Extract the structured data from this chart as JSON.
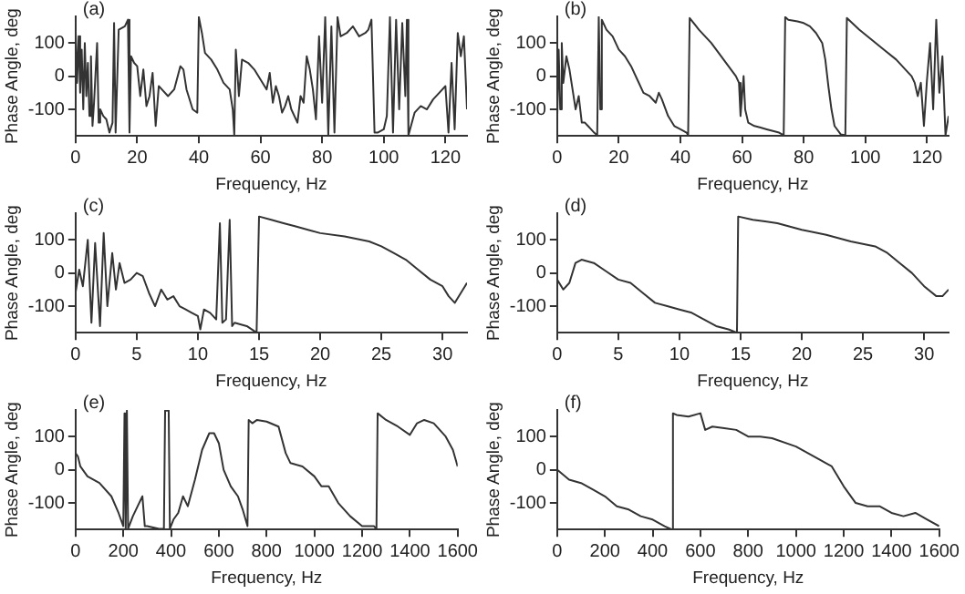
{
  "chart_data": [
    {
      "type": "line",
      "title": "(a)",
      "xlabel": "Frequency, Hz",
      "ylabel": "Phase Angle, deg",
      "xlim": [
        0,
        127
      ],
      "xticks": [
        0,
        20,
        40,
        60,
        80,
        100,
        120
      ],
      "ylim": [
        -180,
        180
      ],
      "yticks": [
        -100,
        0,
        100
      ],
      "grid": false,
      "color": "#333333",
      "x": [
        0,
        0.5,
        1,
        1.5,
        2,
        2.5,
        3,
        3.5,
        4,
        4.5,
        5,
        5.5,
        6,
        7,
        7.5,
        8,
        9,
        10,
        11,
        12,
        12.5,
        13,
        14,
        16,
        17,
        17.5,
        18,
        19,
        20,
        21,
        22,
        23,
        24,
        25,
        26,
        27,
        28,
        30,
        32,
        34,
        35,
        36,
        38,
        39.5,
        40,
        41,
        42,
        44,
        46,
        48,
        50,
        51,
        51.5,
        52,
        53,
        54,
        56,
        58,
        60,
        62,
        63,
        64,
        65,
        66,
        67,
        68,
        69,
        70,
        72,
        73,
        74,
        75,
        76,
        77,
        78,
        79,
        80,
        81,
        82,
        83,
        84,
        85,
        86,
        88,
        90,
        92,
        94,
        95,
        96,
        97,
        98,
        100,
        101,
        102,
        103,
        104,
        105,
        106,
        107,
        107.5,
        108,
        110,
        112,
        114,
        116,
        118,
        120,
        121,
        122,
        123,
        124,
        125,
        126,
        127
      ],
      "values": [
        150,
        -20,
        120,
        -50,
        80,
        -100,
        100,
        -60,
        40,
        -120,
        60,
        -150,
        -80,
        100,
        -140,
        -100,
        -120,
        -130,
        -170,
        -140,
        160,
        -170,
        140,
        150,
        170,
        -170,
        60,
        40,
        30,
        -60,
        20,
        -90,
        -60,
        10,
        -150,
        -30,
        -40,
        -60,
        -40,
        30,
        20,
        -40,
        -100,
        -110,
        178,
        130,
        70,
        50,
        20,
        -20,
        -40,
        -100,
        -178,
        80,
        -60,
        50,
        40,
        20,
        -10,
        -40,
        10,
        -80,
        -30,
        -60,
        -110,
        -90,
        -60,
        -100,
        -140,
        -60,
        -80,
        60,
        20,
        -40,
        -130,
        120,
        -80,
        178,
        -178,
        150,
        -170,
        178,
        120,
        130,
        150,
        120,
        130,
        140,
        170,
        -170,
        -170,
        -160,
        -120,
        178,
        -170,
        170,
        -100,
        160,
        -60,
        170,
        -178,
        -110,
        -90,
        -100,
        -70,
        -50,
        -30,
        -170,
        40,
        -160,
        130,
        60,
        120,
        -100
      ]
    },
    {
      "type": "line",
      "title": "(b)",
      "xlabel": "Frequency, Hz",
      "ylabel": "Phase Angle, deg",
      "xlim": [
        0,
        127
      ],
      "xticks": [
        0,
        20,
        40,
        60,
        80,
        100,
        120
      ],
      "ylim": [
        -180,
        180
      ],
      "yticks": [
        -100,
        0,
        100
      ],
      "grid": false,
      "color": "#333333",
      "x": [
        0,
        0.5,
        1,
        1.5,
        2,
        3,
        4,
        5,
        6,
        7,
        8,
        9,
        10,
        11,
        12,
        13,
        13.5,
        14,
        14.5,
        16,
        18,
        20,
        22,
        24,
        26,
        28,
        30,
        32,
        33,
        34,
        36,
        38,
        40,
        42,
        42.5,
        43,
        46,
        50,
        54,
        58,
        59,
        59.5,
        60,
        60.5,
        61,
        62,
        64,
        66,
        68,
        70,
        72,
        73.5,
        74,
        75,
        78,
        80,
        82,
        84,
        86,
        87,
        88,
        89,
        90,
        92,
        93.5,
        94,
        98,
        102,
        106,
        110,
        113,
        115,
        116,
        117,
        118,
        119,
        120,
        121,
        122,
        123,
        124,
        125,
        126,
        127
      ],
      "values": [
        -140,
        80,
        -100,
        100,
        -20,
        60,
        20,
        -40,
        -100,
        -60,
        -140,
        -140,
        -150,
        -160,
        -170,
        -178,
        178,
        -100,
        170,
        140,
        120,
        80,
        60,
        30,
        -10,
        -50,
        -60,
        -80,
        -50,
        -70,
        -120,
        -150,
        -160,
        -170,
        -178,
        175,
        140,
        100,
        50,
        0,
        -20,
        -120,
        -60,
        0,
        -100,
        -140,
        -150,
        -155,
        -160,
        -165,
        -170,
        -178,
        178,
        170,
        165,
        160,
        150,
        130,
        100,
        50,
        -30,
        -100,
        -150,
        -175,
        -178,
        175,
        140,
        110,
        80,
        50,
        20,
        0,
        -20,
        -60,
        -20,
        -150,
        -10,
        100,
        -100,
        170,
        -50,
        60,
        -178,
        -120
      ]
    },
    {
      "type": "line",
      "title": "(c)",
      "xlabel": "Frequency, Hz",
      "ylabel": "Phase Angle, deg",
      "xlim": [
        0,
        32
      ],
      "xticks": [
        0,
        5,
        10,
        15,
        20,
        25,
        30
      ],
      "ylim": [
        -180,
        180
      ],
      "yticks": [
        -100,
        0,
        100
      ],
      "grid": false,
      "color": "#333333",
      "x": [
        0,
        0.3,
        0.6,
        1,
        1.3,
        1.6,
        2,
        2.3,
        2.6,
        3,
        3.3,
        3.6,
        4,
        4.5,
        5,
        5.5,
        6,
        6.5,
        7,
        7.5,
        8,
        8.5,
        9,
        9.5,
        10,
        10.2,
        10.5,
        11,
        11.5,
        11.8,
        12,
        12.3,
        12.6,
        12.8,
        13,
        14,
        14.8,
        15,
        16,
        17,
        18,
        19,
        20,
        22,
        24,
        25,
        26,
        27,
        28,
        29,
        30,
        30.5,
        31,
        31.5,
        32
      ],
      "values": [
        -60,
        10,
        -40,
        100,
        -150,
        90,
        -160,
        120,
        -100,
        60,
        -50,
        30,
        -30,
        -20,
        0,
        -10,
        -60,
        -100,
        -50,
        -80,
        -70,
        -100,
        -110,
        -120,
        -130,
        -170,
        -110,
        -120,
        -140,
        150,
        -150,
        -140,
        160,
        -160,
        -150,
        -160,
        -180,
        170,
        160,
        150,
        140,
        130,
        120,
        110,
        95,
        80,
        60,
        40,
        10,
        -20,
        -40,
        -70,
        -90,
        -60,
        -30
      ]
    },
    {
      "type": "line",
      "title": "(d)",
      "xlabel": "Frequency, Hz",
      "ylabel": "Phase Angle, deg",
      "xlim": [
        0,
        32
      ],
      "xticks": [
        0,
        5,
        10,
        15,
        20,
        25,
        30
      ],
      "ylim": [
        -180,
        180
      ],
      "yticks": [
        -100,
        0,
        100
      ],
      "grid": false,
      "color": "#333333",
      "x": [
        0,
        0.5,
        1,
        1.5,
        2,
        3,
        4,
        5,
        6,
        7,
        8,
        9,
        10,
        11,
        12,
        13,
        14,
        14.7,
        14.8,
        16,
        17,
        18,
        20,
        22,
        24,
        26,
        27,
        28,
        29,
        30,
        31,
        31.5,
        32
      ],
      "values": [
        -20,
        -50,
        -30,
        30,
        40,
        30,
        5,
        -20,
        -30,
        -60,
        -90,
        -100,
        -110,
        -120,
        -140,
        -160,
        -170,
        -180,
        170,
        160,
        155,
        150,
        130,
        115,
        95,
        80,
        60,
        30,
        0,
        -40,
        -70,
        -70,
        -50
      ]
    },
    {
      "type": "line",
      "title": "(e)",
      "xlabel": "Frequency, Hz",
      "ylabel": "Phase Angle, deg",
      "xlim": [
        0,
        1600
      ],
      "xticks": [
        0,
        200,
        400,
        600,
        800,
        1000,
        1200,
        1400,
        1600
      ],
      "ylim": [
        -180,
        180
      ],
      "yticks": [
        -100,
        0,
        100
      ],
      "grid": false,
      "color": "#333333",
      "x": [
        0,
        10,
        20,
        50,
        100,
        150,
        180,
        200,
        205,
        210,
        215,
        220,
        240,
        260,
        280,
        290,
        300,
        350,
        370,
        375,
        390,
        395,
        410,
        430,
        450,
        470,
        500,
        530,
        560,
        580,
        600,
        620,
        650,
        680,
        700,
        720,
        725,
        740,
        760,
        800,
        850,
        880,
        900,
        950,
        1000,
        1030,
        1060,
        1100,
        1150,
        1200,
        1250,
        1260,
        1265,
        1300,
        1350,
        1400,
        1430,
        1460,
        1500,
        1550,
        1580,
        1600
      ],
      "values": [
        50,
        40,
        10,
        -20,
        -40,
        -80,
        -130,
        -170,
        170,
        -178,
        178,
        -178,
        -140,
        -110,
        -80,
        -170,
        -170,
        -178,
        -178,
        178,
        178,
        -178,
        -150,
        -130,
        -80,
        -110,
        -30,
        60,
        110,
        110,
        80,
        0,
        -50,
        -80,
        -120,
        -170,
        150,
        140,
        150,
        145,
        130,
        50,
        20,
        10,
        -20,
        -50,
        -50,
        -100,
        -140,
        -170,
        -170,
        -178,
        170,
        150,
        130,
        105,
        140,
        150,
        140,
        100,
        60,
        10
      ]
    },
    {
      "type": "line",
      "title": "(f)",
      "xlabel": "Frequency, Hz",
      "ylabel": "Phase Angle, deg",
      "xlim": [
        0,
        1600
      ],
      "xticks": [
        0,
        200,
        400,
        600,
        800,
        1000,
        1200,
        1400,
        1600
      ],
      "ylim": [
        -180,
        180
      ],
      "yticks": [
        -100,
        0,
        100
      ],
      "grid": false,
      "color": "#333333",
      "x": [
        0,
        50,
        100,
        150,
        200,
        250,
        300,
        350,
        400,
        450,
        480,
        485,
        500,
        550,
        600,
        620,
        650,
        700,
        750,
        800,
        850,
        900,
        1000,
        1050,
        1100,
        1150,
        1200,
        1250,
        1300,
        1350,
        1400,
        1450,
        1500,
        1550,
        1600
      ],
      "values": [
        0,
        -30,
        -40,
        -60,
        -80,
        -110,
        -120,
        -140,
        -150,
        -170,
        -180,
        170,
        165,
        160,
        170,
        120,
        130,
        125,
        120,
        100,
        100,
        95,
        70,
        50,
        30,
        10,
        -50,
        -100,
        -110,
        -110,
        -130,
        -140,
        -130,
        -150,
        -170
      ]
    }
  ]
}
